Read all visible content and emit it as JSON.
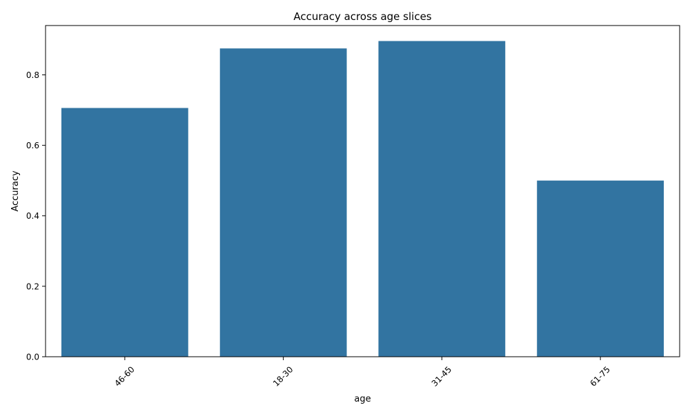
{
  "chart_data": {
    "type": "bar",
    "title": "Accuracy across age slices",
    "xlabel": "age",
    "ylabel": "Accuracy",
    "categories": [
      "46-60",
      "18-30",
      "31-45",
      "61-75"
    ],
    "values": [
      0.706,
      0.875,
      0.896,
      0.5
    ],
    "ylim": [
      0,
      0.94
    ],
    "yticks": [
      0.0,
      0.2,
      0.4,
      0.6,
      0.8
    ],
    "ytick_labels": [
      "0.0",
      "0.2",
      "0.4",
      "0.6",
      "0.8"
    ],
    "x_tick_rotation_deg": 45,
    "grid": false,
    "legend": "none",
    "bar_color": "#3274a1"
  }
}
